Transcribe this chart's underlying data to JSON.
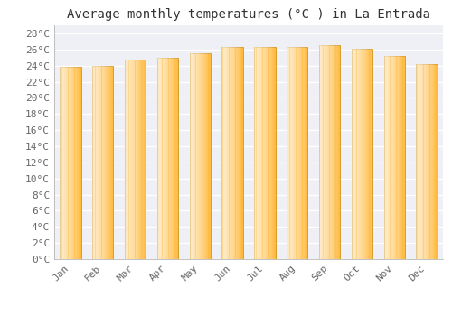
{
  "title": "Average monthly temperatures (°C ) in La Entrada",
  "months": [
    "Jan",
    "Feb",
    "Mar",
    "Apr",
    "May",
    "Jun",
    "Jul",
    "Aug",
    "Sep",
    "Oct",
    "Nov",
    "Dec"
  ],
  "values": [
    23.8,
    24.0,
    24.7,
    25.0,
    25.5,
    26.3,
    26.3,
    26.3,
    26.5,
    26.1,
    25.2,
    24.2
  ],
  "bar_color_left": "#FFB732",
  "bar_color_right": "#FFA500",
  "bar_edge_color": "#CC8800",
  "ylim": [
    0,
    29
  ],
  "ytick_step": 2,
  "plot_bg_color": "#eef0f5",
  "fig_bg_color": "#ffffff",
  "grid_color": "#ffffff",
  "title_fontsize": 10,
  "tick_fontsize": 8,
  "font_family": "monospace"
}
